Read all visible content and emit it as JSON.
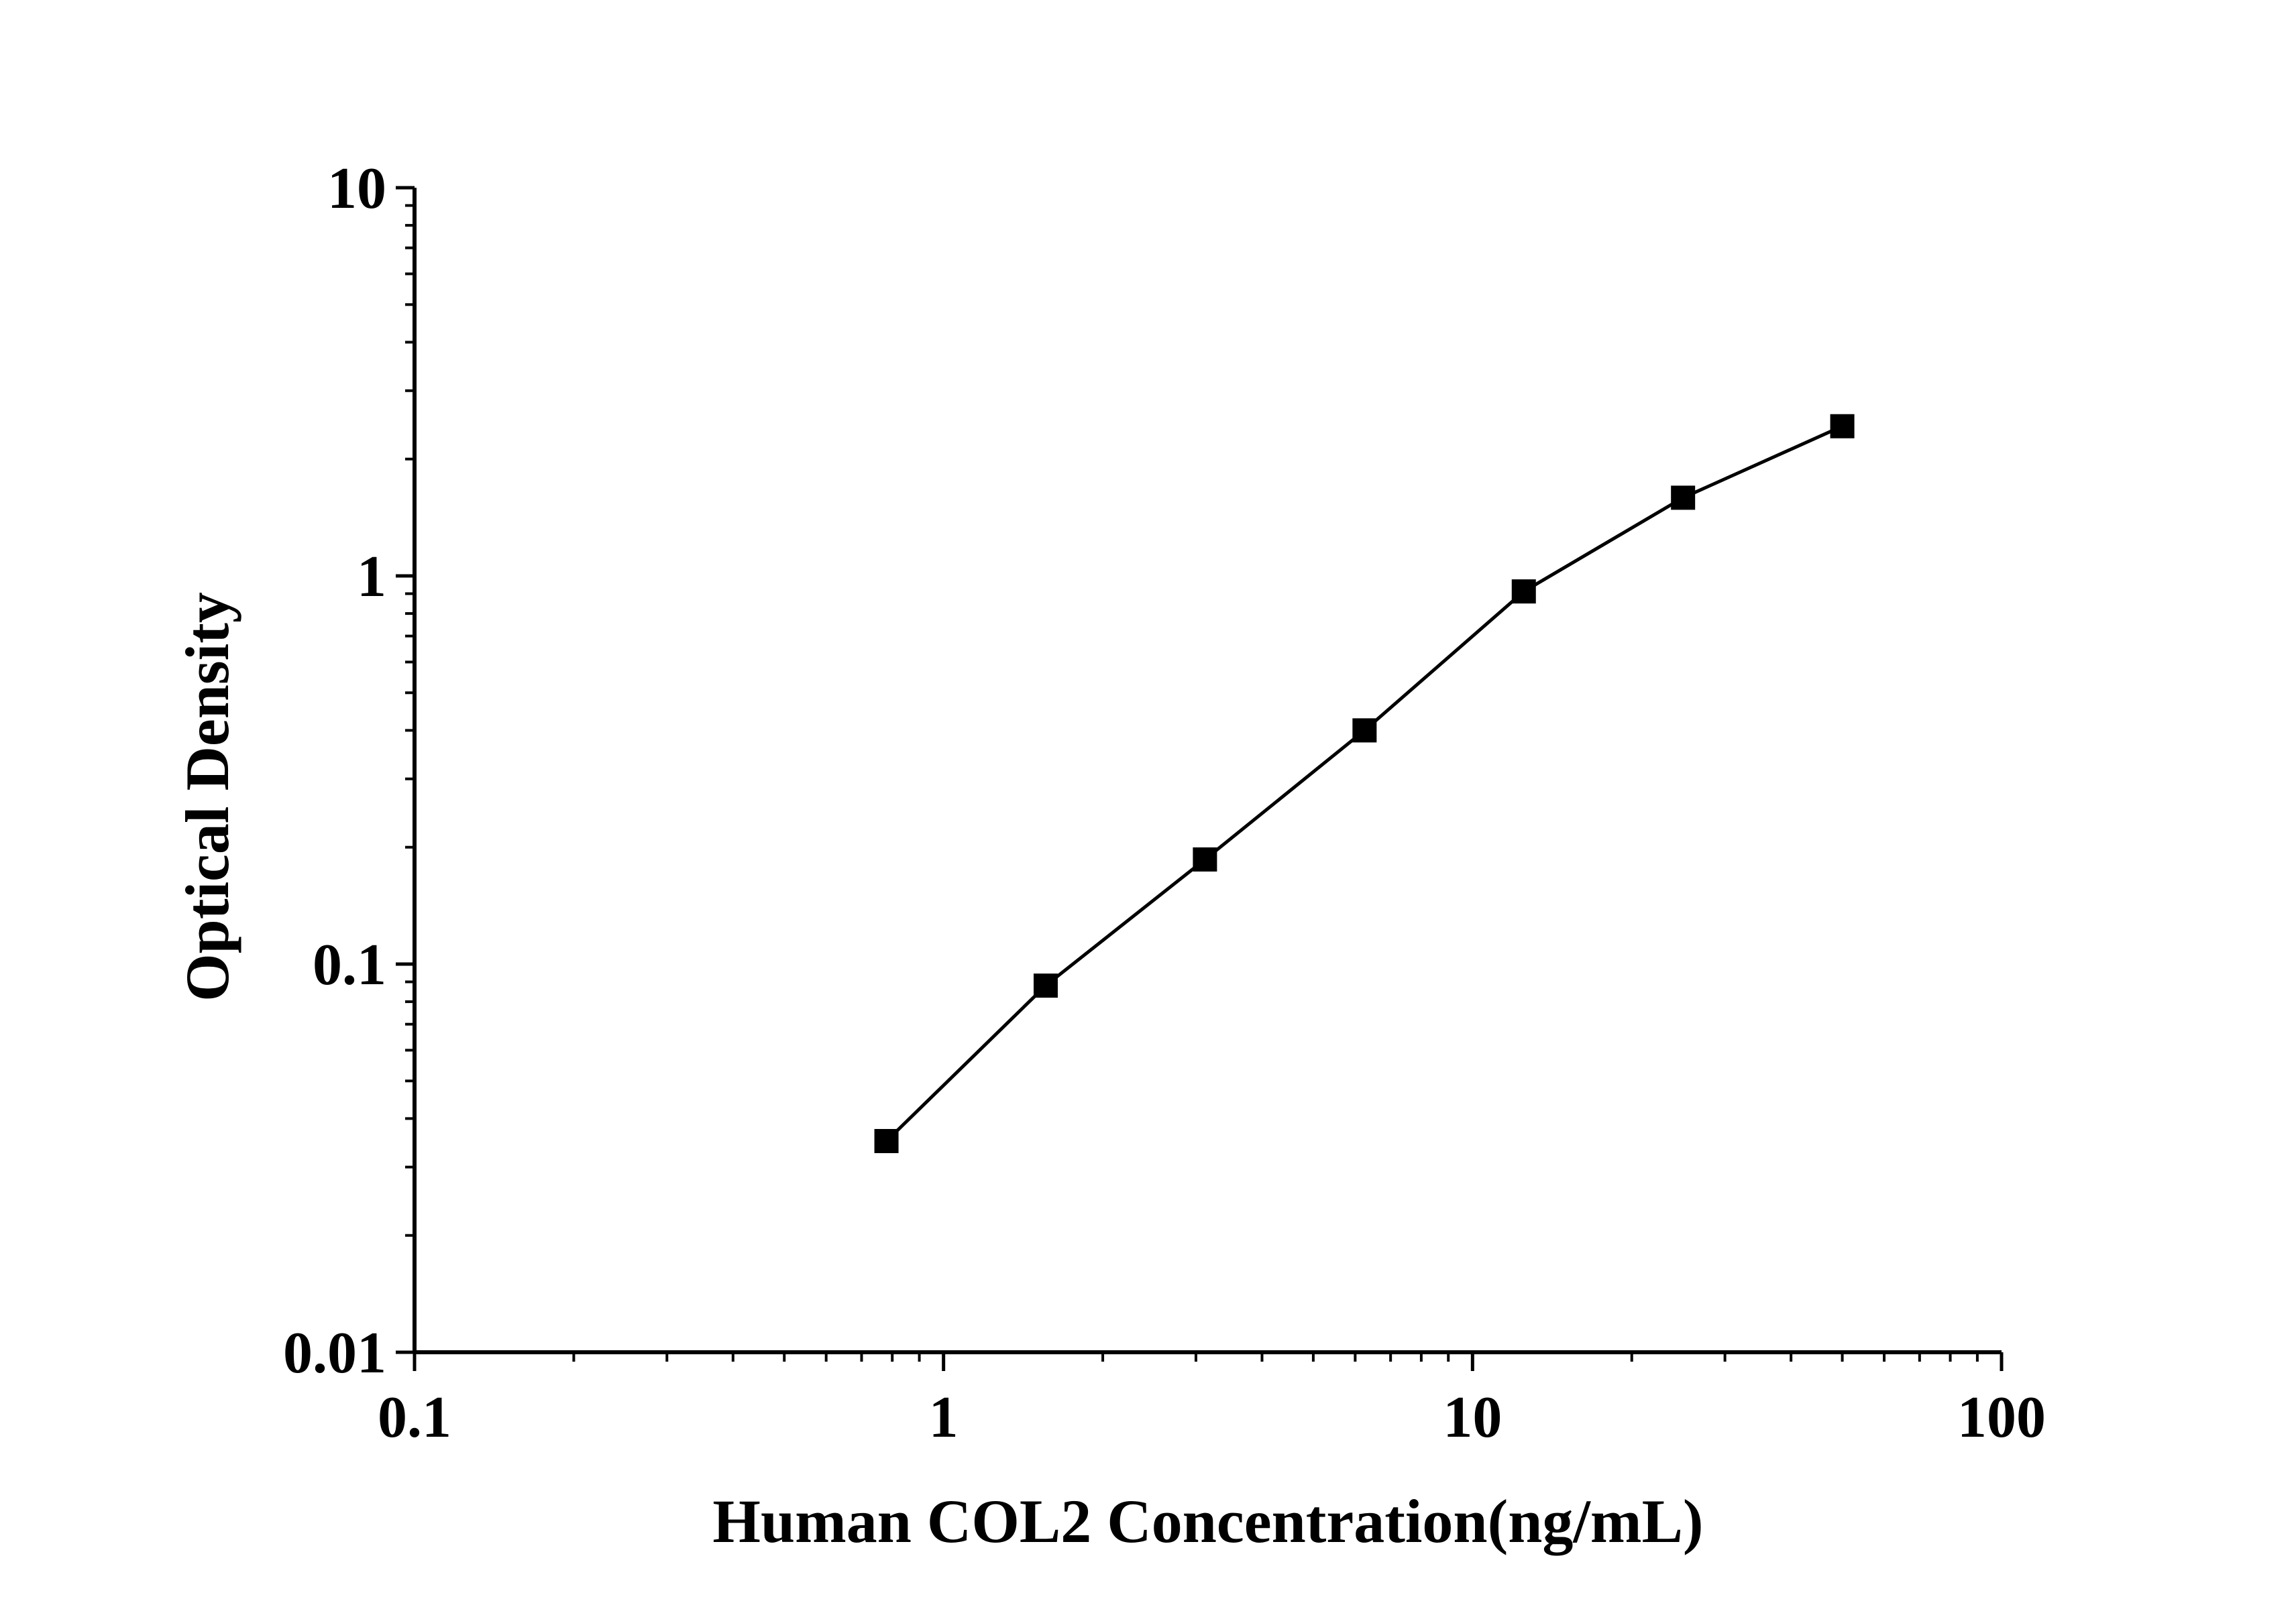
{
  "chart_data": {
    "type": "scatter",
    "title": "",
    "xlabel": "Human COL2 Concentration(ng/mL)",
    "ylabel": "Optical Density",
    "x_scale": "log",
    "y_scale": "log",
    "xlim": [
      0.1,
      100
    ],
    "ylim": [
      0.01,
      10
    ],
    "x_ticks": [
      {
        "value": 0.1,
        "label": "0.1"
      },
      {
        "value": 1,
        "label": "1"
      },
      {
        "value": 10,
        "label": "10"
      },
      {
        "value": 100,
        "label": "100"
      }
    ],
    "y_ticks": [
      {
        "value": 0.01,
        "label": "0.01"
      },
      {
        "value": 0.1,
        "label": "0.1"
      },
      {
        "value": 1,
        "label": "1"
      },
      {
        "value": 10,
        "label": "10"
      }
    ],
    "grid": false,
    "legend": "none",
    "series": [
      {
        "marker": "square",
        "connected": true,
        "color": "#000000",
        "x": [
          0.78,
          1.56,
          3.12,
          6.25,
          12.5,
          25,
          50
        ],
        "y": [
          0.035,
          0.088,
          0.186,
          0.4,
          0.912,
          1.59,
          2.43
        ]
      }
    ]
  }
}
